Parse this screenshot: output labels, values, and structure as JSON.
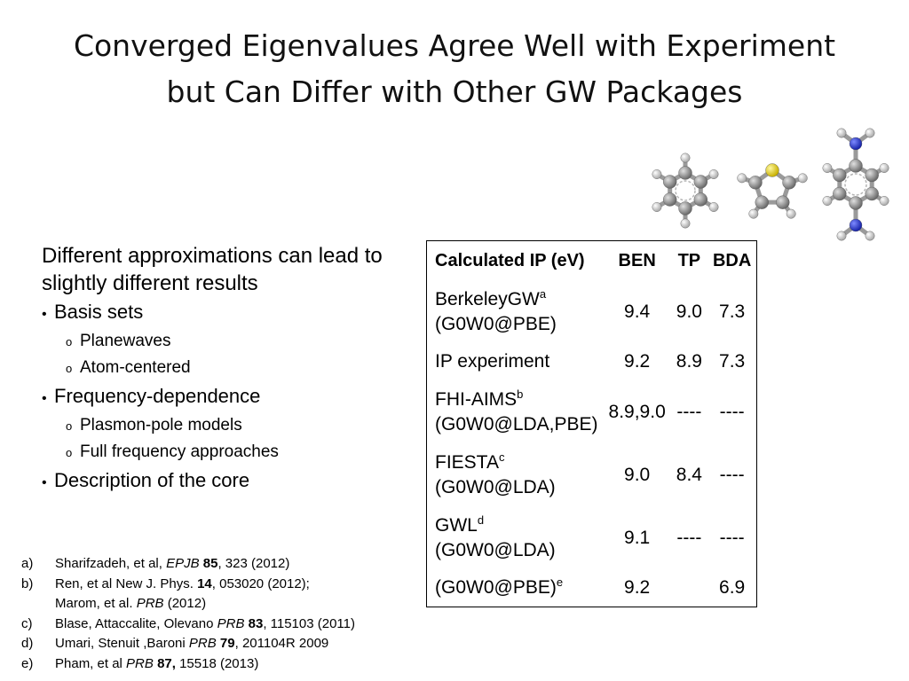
{
  "title": {
    "line1": "Converged Eigenvalues Agree Well with Experiment",
    "line2": "but Can Differ with Other GW Packages"
  },
  "molecules": [
    "benzene-molecule",
    "thiophene-molecule",
    "benzenediamine-molecule"
  ],
  "bullets": {
    "intro": "Different approximations can lead to slightly different results",
    "items": [
      {
        "text": "Basis sets",
        "sub": [
          "Planewaves",
          "Atom-centered"
        ]
      },
      {
        "text": "Frequency-dependence",
        "sub": [
          "Plasmon-pole models",
          "Full frequency approaches"
        ]
      },
      {
        "text": "Description of the core",
        "sub": []
      }
    ]
  },
  "table": {
    "headers": [
      "Calculated IP (eV)",
      "BEN",
      "TP",
      "BDA"
    ],
    "rows": [
      {
        "name": "BerkeleyGW",
        "sup": "a",
        "method": "(G0W0@PBE)",
        "ben": "9.4",
        "tp": "9.0",
        "bda": "7.3"
      },
      {
        "name": "IP experiment",
        "sup": "",
        "method": "",
        "ben": "9.2",
        "tp": "8.9",
        "bda": "7.3"
      },
      {
        "name": "FHI-AIMS",
        "sup": "b",
        "method": "(G0W0@LDA,PBE)",
        "ben": "8.9,9.0",
        "tp": "----",
        "bda": "----"
      },
      {
        "name": "FIESTA",
        "sup": "c",
        "method": "(G0W0@LDA)",
        "ben": "9.0",
        "tp": "8.4",
        "bda": "----"
      },
      {
        "name": "GWL",
        "sup": "d",
        "method": "(G0W0@LDA)",
        "ben": "9.1",
        "tp": "----",
        "bda": "----"
      },
      {
        "name": "(G0W0@PBE)",
        "sup": "e",
        "method": "",
        "ben": "9.2",
        "tp": "",
        "bda": "6.9"
      }
    ]
  },
  "references": [
    {
      "label": "a)",
      "authors": "Sharifzadeh, et al, ",
      "journal": "EPJB",
      "volume": "85",
      "rest": ", 323 (2012)"
    },
    {
      "label": "b)",
      "authors": "Ren, et al New J. Phys. ",
      "journal": "",
      "volume": "14",
      "rest": ", 053020 (2012);",
      "cont_authors": "Marom, et al. ",
      "cont_journal": "PRB",
      "cont_rest": " (2012)"
    },
    {
      "label": "c)",
      "authors": "Blase, Attaccalite, Olevano ",
      "journal": "PRB",
      "volume": "83",
      "rest": ", 115103 (2011)"
    },
    {
      "label": "d)",
      "authors": "Umari, Stenuit ,Baroni ",
      "journal": "PRB",
      "volume": "79",
      "rest": ", 201104R 2009"
    },
    {
      "label": "e)",
      "authors": "Pham, et al ",
      "journal": "PRB",
      "volume": "87,",
      "rest": " 15518 (2013)"
    }
  ],
  "colors": {
    "carbon": "#8c8c8c",
    "hydrogen": "#eeeeee",
    "sulfur": "#e6d21a",
    "nitrogen": "#2a36d8"
  }
}
